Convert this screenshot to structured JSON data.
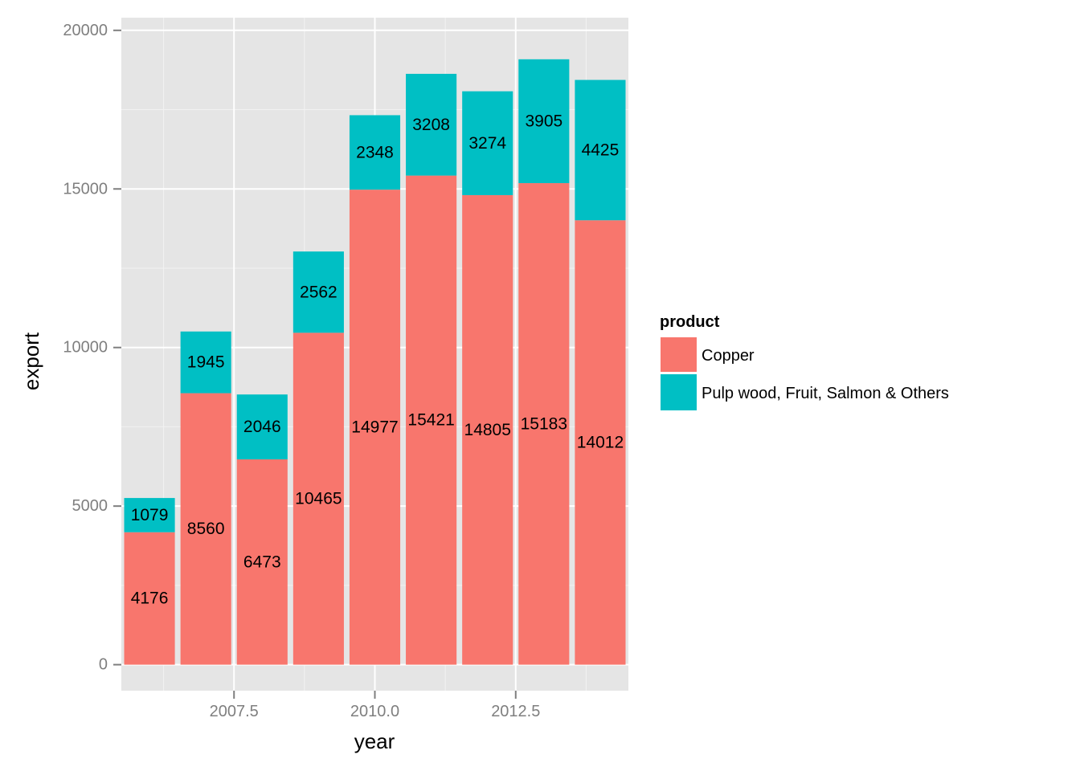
{
  "chart_data": {
    "type": "bar",
    "stacked": true,
    "x": [
      2006,
      2007,
      2008,
      2009,
      2010,
      2011,
      2012,
      2013,
      2014
    ],
    "series": [
      {
        "name": "Copper",
        "color": "#F8766D",
        "values": [
          4176,
          8560,
          6473,
          10465,
          14977,
          15421,
          14805,
          15183,
          14012
        ]
      },
      {
        "name": "Pulp wood, Fruit, Salmon & Others",
        "color": "#00BFC4",
        "values": [
          1079,
          1945,
          2046,
          2562,
          2348,
          3208,
          3274,
          3905,
          4425
        ]
      }
    ],
    "xlabel": "year",
    "ylabel": "export",
    "xlim": [
      2005.5,
      2014.5
    ],
    "ylim": [
      -820,
      20400
    ],
    "x_ticks": [
      2007.5,
      2010.0,
      2012.5
    ],
    "x_tick_labels": [
      "2007.5",
      "2010.0",
      "2012.5"
    ],
    "y_ticks": [
      0,
      5000,
      10000,
      15000,
      20000
    ],
    "y_tick_labels": [
      "0",
      "5000",
      "10000",
      "15000",
      "20000"
    ],
    "legend_title": "product",
    "legend_position": "right",
    "grid": true,
    "panel_background": "#E5E5E5",
    "grid_color": "#FFFFFF"
  }
}
